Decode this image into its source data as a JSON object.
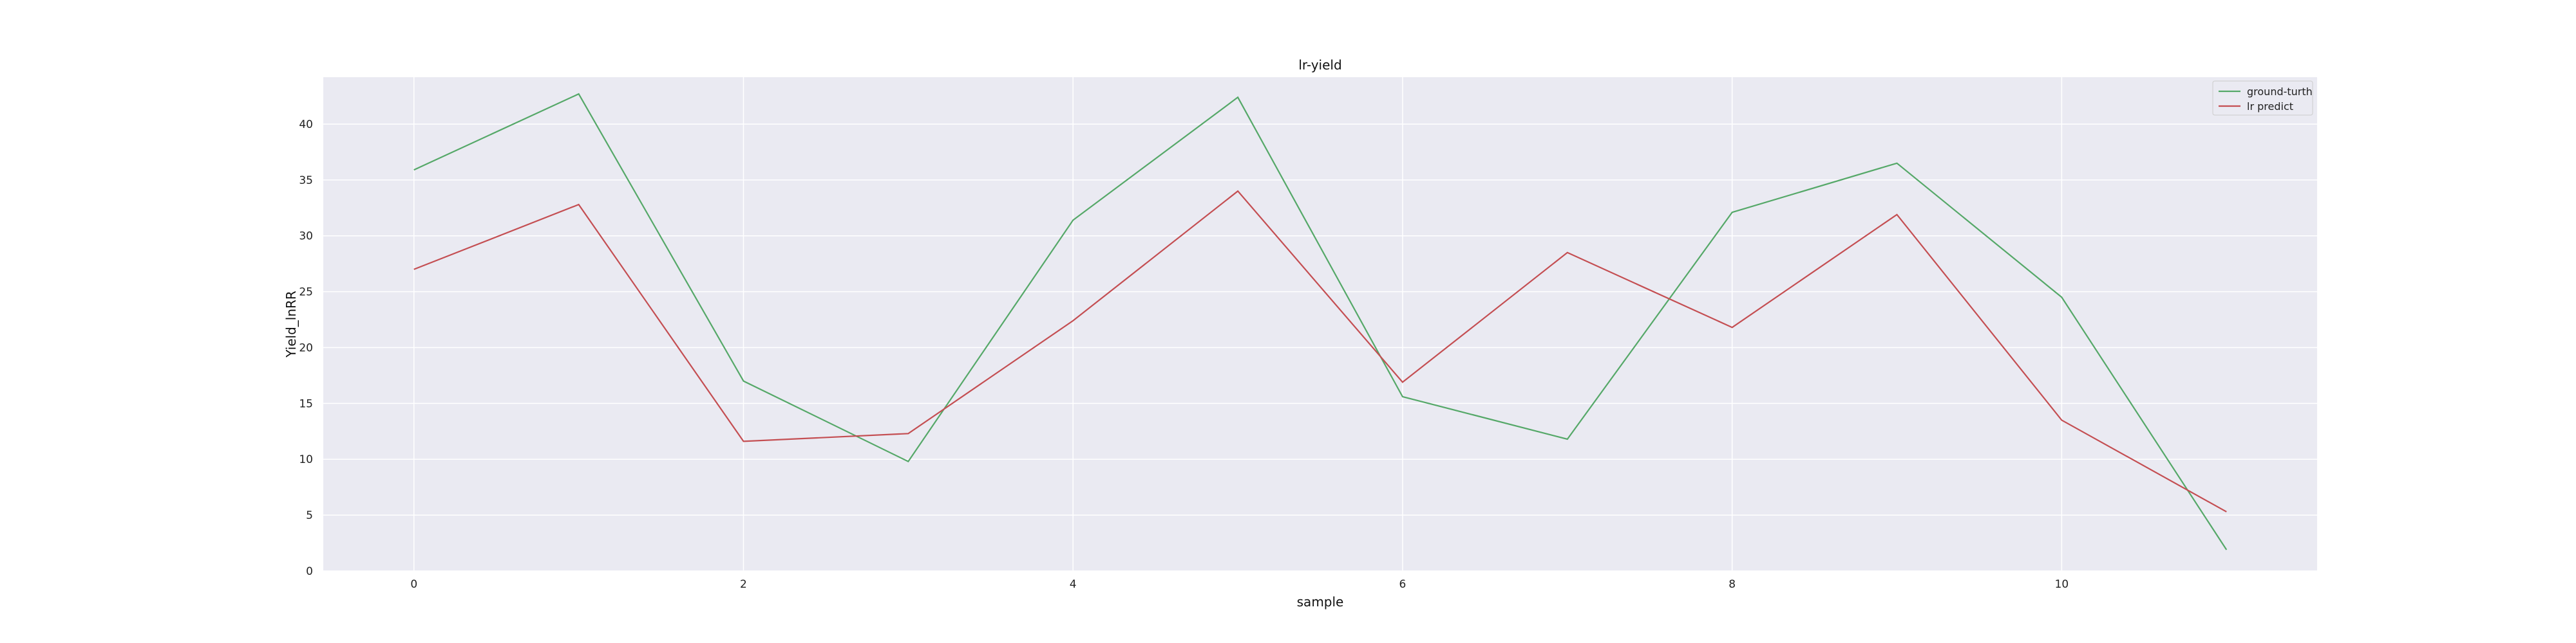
{
  "chart_data": {
    "type": "line",
    "title": "lr-yield",
    "xlabel": "sample",
    "ylabel": "Yield_lnRR",
    "x": [
      0,
      1,
      2,
      3,
      4,
      5,
      6,
      7,
      8,
      9,
      10,
      11
    ],
    "xlim": [
      -0.55,
      11.55
    ],
    "ylim": [
      0,
      44.2
    ],
    "xticks": [
      0,
      2,
      4,
      6,
      8,
      10
    ],
    "yticks": [
      0,
      5,
      10,
      15,
      20,
      25,
      30,
      35,
      40
    ],
    "grid": true,
    "legend_position": "top-right",
    "background_color": "#eaeaf2",
    "series": [
      {
        "name": "ground-turth",
        "color": "#55a868",
        "values": [
          35.9,
          42.7,
          17.0,
          9.8,
          31.4,
          42.4,
          15.6,
          11.8,
          32.1,
          36.5,
          24.5,
          1.9
        ]
      },
      {
        "name": "lr predict",
        "color": "#c44e52",
        "values": [
          27.0,
          32.8,
          11.6,
          12.3,
          22.4,
          34.0,
          16.9,
          28.5,
          21.8,
          31.9,
          13.5,
          5.3
        ]
      }
    ]
  }
}
